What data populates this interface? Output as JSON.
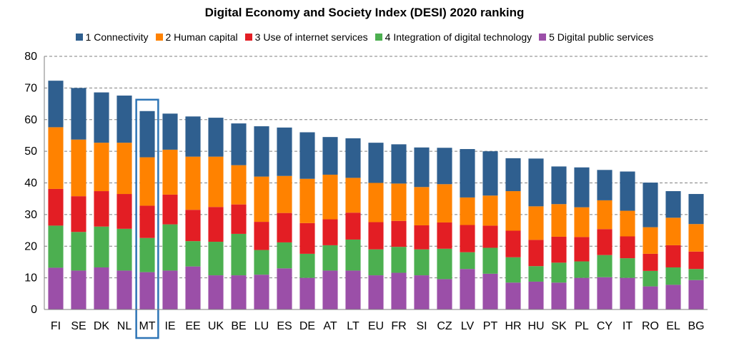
{
  "chart_data": {
    "type": "bar",
    "stacked": true,
    "title": "Digital Economy and Society Index (DESI) 2020 ranking",
    "xlabel": "",
    "ylabel": "",
    "ylim": [
      0,
      80
    ],
    "yticks": [
      0,
      10,
      20,
      30,
      40,
      50,
      60,
      70,
      80
    ],
    "grid": true,
    "legend_position": "top",
    "highlighted_category": "MT",
    "categories": [
      "FI",
      "SE",
      "DK",
      "NL",
      "MT",
      "IE",
      "EE",
      "UK",
      "BE",
      "LU",
      "ES",
      "DE",
      "AT",
      "LT",
      "EU",
      "FR",
      "SI",
      "CZ",
      "LV",
      "PT",
      "HR",
      "HU",
      "SK",
      "PL",
      "CY",
      "IT",
      "RO",
      "EL",
      "BG"
    ],
    "series": [
      {
        "name": "5 Digital public services",
        "color": "#9b4fa8",
        "values": [
          13.2,
          12.3,
          13.3,
          12.3,
          11.8,
          12.3,
          13.6,
          10.8,
          10.8,
          11.0,
          13.0,
          10.0,
          12.3,
          12.3,
          10.8,
          11.6,
          10.8,
          9.6,
          12.8,
          11.3,
          8.5,
          8.8,
          8.5,
          10.0,
          10.2,
          10.0,
          7.3,
          7.8,
          9.3
        ]
      },
      {
        "name": "4 Integration of digital technology",
        "color": "#4caf50",
        "values": [
          13.3,
          12.2,
          12.9,
          13.2,
          10.8,
          14.6,
          8.0,
          10.6,
          13.1,
          7.8,
          8.2,
          7.6,
          8.0,
          9.8,
          8.2,
          8.2,
          8.2,
          9.6,
          5.3,
          8.2,
          8.0,
          4.9,
          6.3,
          5.2,
          7.0,
          6.2,
          4.9,
          5.5,
          3.5
        ]
      },
      {
        "name": "3 Use of internet services",
        "color": "#e31e24",
        "values": [
          11.6,
          11.3,
          11.2,
          11.0,
          10.2,
          9.4,
          9.9,
          11.0,
          9.3,
          8.9,
          9.3,
          9.7,
          8.2,
          8.5,
          8.6,
          8.2,
          7.6,
          8.3,
          8.6,
          7.0,
          8.4,
          8.3,
          8.2,
          7.7,
          8.2,
          6.9,
          5.4,
          7.0,
          5.5
        ]
      },
      {
        "name": "2 Human capital",
        "color": "#ff8200",
        "values": [
          19.5,
          17.9,
          15.3,
          16.2,
          15.3,
          14.2,
          16.8,
          15.9,
          12.4,
          14.3,
          11.7,
          14.0,
          14.1,
          11.0,
          12.4,
          11.8,
          12.1,
          12.1,
          8.7,
          9.5,
          12.5,
          10.6,
          10.3,
          9.4,
          9.1,
          8.1,
          8.4,
          8.7,
          8.7
        ]
      },
      {
        "name": "1 Connectivity",
        "color": "#2f5f8f",
        "values": [
          14.7,
          16.3,
          15.9,
          14.9,
          14.6,
          11.4,
          12.7,
          12.3,
          13.2,
          15.9,
          15.3,
          14.7,
          11.9,
          12.5,
          12.7,
          12.4,
          12.5,
          11.5,
          15.3,
          14.0,
          10.4,
          15.1,
          11.9,
          12.6,
          9.6,
          12.4,
          14.1,
          8.4,
          9.5
        ]
      }
    ],
    "totals": [
      72.3,
      70.0,
      68.6,
      67.6,
      62.7,
      61.9,
      61.0,
      60.6,
      58.8,
      57.9,
      57.5,
      56.0,
      54.5,
      54.1,
      52.7,
      52.2,
      51.2,
      51.1,
      50.7,
      50.0,
      47.8,
      47.7,
      45.2,
      44.9,
      44.1,
      43.6,
      40.1,
      37.4,
      36.5
    ]
  }
}
